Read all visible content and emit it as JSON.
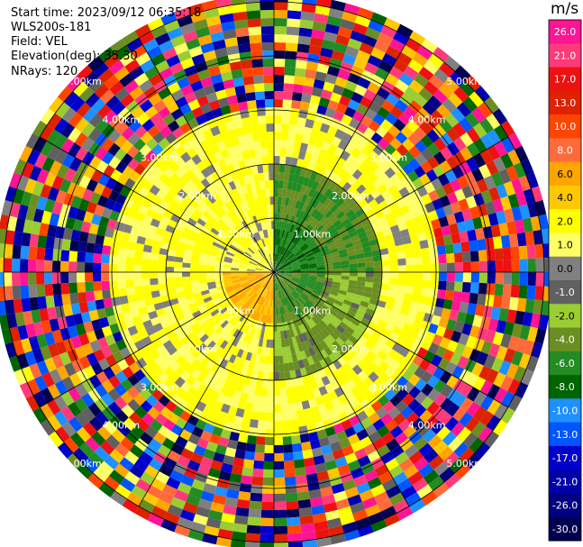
{
  "header": {
    "start_time": "Start time: 2023/09/12 06:35:18",
    "instrument": "WLS200s-181",
    "field": "Field: VEL",
    "elevation": "Elevation(deg): 35.30",
    "nrays": "NRays: 120"
  },
  "chart_data": {
    "type": "heatmap",
    "subtype": "radar-ppi-polar",
    "field": "VEL",
    "units": "m/s",
    "range_rings": [
      "1.00km",
      "2.00km",
      "3.00km",
      "4.00km",
      "5.00km"
    ],
    "azimuth_lines_deg": [
      0,
      30,
      60,
      90,
      120,
      150,
      180,
      210,
      240,
      270,
      300,
      330
    ],
    "nrays": 120,
    "colorbar": {
      "ticks": [
        26.0,
        21.0,
        17.0,
        13.0,
        10.0,
        8.0,
        6.0,
        4.0,
        2.0,
        1.0,
        0.0,
        -1.0,
        -2.0,
        -4.0,
        -6.0,
        -8.0,
        -10.0,
        -13.0,
        -17.0,
        -21.0,
        -26.0,
        -30.0
      ],
      "tick_labels": [
        "26.0",
        "21.0",
        "17.0",
        "13.0",
        "10.0",
        "8.0",
        "6.0",
        "4.0",
        "2.0",
        "1.0",
        "0.0",
        "-1.0",
        "-2.0",
        "-4.0",
        "-6.0",
        "-8.0",
        "-10.0",
        "-13.0",
        "-17.0",
        "-21.0",
        "-26.0",
        "-30.0"
      ],
      "colors": [
        "#ff1493",
        "#ff3a7a",
        "#ee1111",
        "#dd2200",
        "#ff4500",
        "#ff6a3a",
        "#ffa500",
        "#ffc800",
        "#ffff00",
        "#ffff66",
        "#808080",
        "#606060",
        "#9acd32",
        "#6b8e23",
        "#228b22",
        "#006400",
        "#1e90ff",
        "#0055ff",
        "#0000cd",
        "#0000aa",
        "#000080",
        "#000050"
      ]
    },
    "regions": [
      {
        "range_km": [
          0.0,
          1.0
        ],
        "azimuth_deg": [
          0,
          90
        ],
        "value": -6.0
      },
      {
        "range_km": [
          0.0,
          1.0
        ],
        "azimuth_deg": [
          90,
          180
        ],
        "value": -4.0
      },
      {
        "range_km": [
          0.0,
          1.0
        ],
        "azimuth_deg": [
          180,
          270
        ],
        "value": 6.0
      },
      {
        "range_km": [
          0.0,
          1.0
        ],
        "azimuth_deg": [
          270,
          360
        ],
        "value": 2.0
      },
      {
        "range_km": [
          1.0,
          2.0
        ],
        "azimuth_deg": [
          0,
          90
        ],
        "value": -4.0
      },
      {
        "range_km": [
          1.0,
          2.0
        ],
        "azimuth_deg": [
          90,
          180
        ],
        "value": -2.0
      },
      {
        "range_km": [
          1.0,
          2.0
        ],
        "azimuth_deg": [
          180,
          270
        ],
        "value": 2.0
      },
      {
        "range_km": [
          1.0,
          2.0
        ],
        "azimuth_deg": [
          270,
          360
        ],
        "value": 2.0
      },
      {
        "range_km": [
          2.0,
          3.0
        ],
        "azimuth_deg": [
          0,
          360
        ],
        "value": 2.0
      },
      {
        "range_km": [
          3.0,
          5.2
        ],
        "azimuth_deg": [
          0,
          360
        ],
        "value": "noise"
      }
    ]
  }
}
